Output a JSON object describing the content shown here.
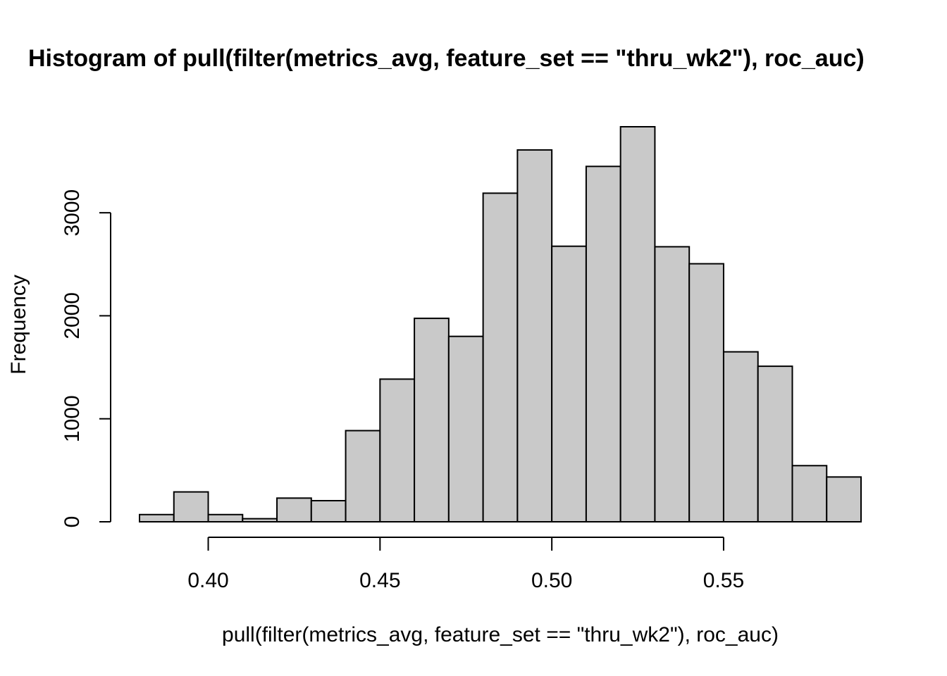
{
  "chart_data": {
    "type": "bar",
    "title": "Histogram of pull(filter(metrics_avg, feature_set == \"thru_wk2\"), roc_auc)",
    "xlabel": "pull(filter(metrics_avg, feature_set == \"thru_wk2\"), roc_auc)",
    "ylabel": "Frequency",
    "bins": [
      {
        "start": 0.38,
        "end": 0.39,
        "count": 70
      },
      {
        "start": 0.39,
        "end": 0.4,
        "count": 290
      },
      {
        "start": 0.4,
        "end": 0.41,
        "count": 70
      },
      {
        "start": 0.41,
        "end": 0.42,
        "count": 30
      },
      {
        "start": 0.42,
        "end": 0.43,
        "count": 230
      },
      {
        "start": 0.43,
        "end": 0.44,
        "count": 205
      },
      {
        "start": 0.44,
        "end": 0.45,
        "count": 885
      },
      {
        "start": 0.45,
        "end": 0.46,
        "count": 1385
      },
      {
        "start": 0.46,
        "end": 0.47,
        "count": 1975
      },
      {
        "start": 0.47,
        "end": 0.48,
        "count": 1800
      },
      {
        "start": 0.48,
        "end": 0.49,
        "count": 3190
      },
      {
        "start": 0.49,
        "end": 0.5,
        "count": 3610
      },
      {
        "start": 0.5,
        "end": 0.51,
        "count": 2675
      },
      {
        "start": 0.51,
        "end": 0.52,
        "count": 3450
      },
      {
        "start": 0.52,
        "end": 0.53,
        "count": 3835
      },
      {
        "start": 0.53,
        "end": 0.54,
        "count": 2670
      },
      {
        "start": 0.54,
        "end": 0.55,
        "count": 2505
      },
      {
        "start": 0.55,
        "end": 0.56,
        "count": 1650
      },
      {
        "start": 0.56,
        "end": 0.57,
        "count": 1510
      },
      {
        "start": 0.57,
        "end": 0.58,
        "count": 545
      },
      {
        "start": 0.58,
        "end": 0.59,
        "count": 435
      }
    ],
    "xticks": [
      0.4,
      0.45,
      0.5,
      0.55
    ],
    "xtick_labels": [
      "0.40",
      "0.45",
      "0.50",
      "0.55"
    ],
    "yticks": [
      0,
      1000,
      2000,
      3000
    ],
    "ytick_labels": [
      "0",
      "1000",
      "2000",
      "3000"
    ],
    "xlim": [
      0.38,
      0.59
    ],
    "ylim": [
      0,
      3835
    ],
    "grid": false,
    "bar_fill": "#c9c9c9",
    "bar_stroke": "#000000"
  }
}
